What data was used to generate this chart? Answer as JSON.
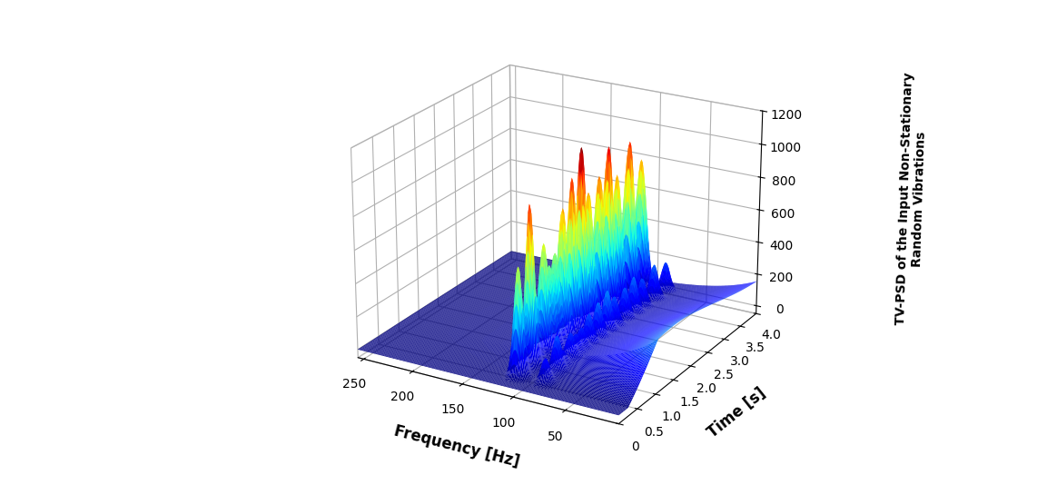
{
  "ylabel": "TV-PSD of the Input Non-Stationary\nRandom Vibrations",
  "xlabel": "Frequency [Hz]",
  "time_label": "Time [s]",
  "freq_min": 0,
  "freq_max": 256,
  "time_min": 0,
  "time_max": 4,
  "zlim": [
    -50,
    1200
  ],
  "freq_ticks": [
    50,
    100,
    150,
    200,
    250
  ],
  "time_ticks": [
    0,
    0.5,
    1.0,
    1.5,
    2.0,
    2.5,
    3.0,
    3.5,
    4.0
  ],
  "z_ticks": [
    0,
    200,
    400,
    600,
    800,
    1000,
    1200
  ],
  "background_color": "#ffffff",
  "colormap": "jet",
  "elev": 22,
  "azim": -60
}
